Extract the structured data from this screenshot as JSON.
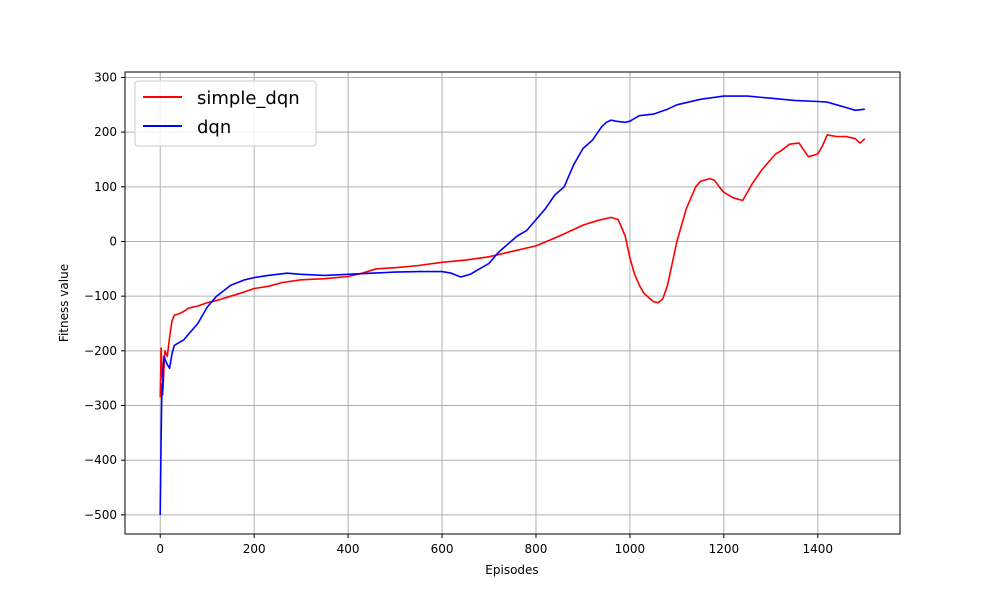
{
  "chart_data": {
    "type": "line",
    "xlabel": "Episodes",
    "ylabel": "Fitness value",
    "xlim": [
      -75,
      1575
    ],
    "ylim": [
      -535,
      310
    ],
    "x_ticks": [
      0,
      200,
      400,
      600,
      800,
      1000,
      1200,
      1400
    ],
    "y_ticks": [
      -500,
      -400,
      -300,
      -200,
      -100,
      0,
      100,
      200,
      300
    ],
    "grid": true,
    "legend_position": "top-left",
    "series": [
      {
        "name": "simple_dqn",
        "color": "#ff0000",
        "x": [
          0,
          2,
          4,
          6,
          8,
          10,
          15,
          20,
          25,
          30,
          40,
          50,
          60,
          80,
          100,
          120,
          150,
          180,
          200,
          230,
          260,
          300,
          350,
          400,
          430,
          460,
          500,
          550,
          600,
          650,
          700,
          750,
          800,
          850,
          900,
          930,
          960,
          975,
          990,
          1000,
          1010,
          1020,
          1030,
          1050,
          1060,
          1070,
          1080,
          1090,
          1100,
          1110,
          1120,
          1130,
          1140,
          1150,
          1170,
          1180,
          1190,
          1200,
          1220,
          1240,
          1260,
          1280,
          1300,
          1310,
          1320,
          1340,
          1360,
          1380,
          1400,
          1410,
          1420,
          1440,
          1460,
          1480,
          1490,
          1500
        ],
        "y": [
          -285,
          -195,
          -240,
          -270,
          -230,
          -200,
          -210,
          -175,
          -145,
          -135,
          -132,
          -128,
          -122,
          -118,
          -112,
          -108,
          -100,
          -92,
          -86,
          -82,
          -75,
          -70,
          -68,
          -64,
          -58,
          -50,
          -48,
          -44,
          -38,
          -34,
          -28,
          -18,
          -8,
          10,
          30,
          38,
          44,
          40,
          10,
          -30,
          -60,
          -80,
          -95,
          -110,
          -112,
          -105,
          -80,
          -40,
          0,
          30,
          60,
          80,
          100,
          110,
          115,
          112,
          100,
          90,
          80,
          75,
          105,
          130,
          150,
          160,
          165,
          178,
          180,
          155,
          160,
          175,
          195,
          192,
          192,
          188,
          180,
          188
        ]
      },
      {
        "name": "dqn",
        "color": "#0000ff",
        "x": [
          0,
          1,
          2,
          3,
          4,
          5,
          6,
          8,
          10,
          15,
          20,
          25,
          30,
          40,
          50,
          60,
          80,
          100,
          120,
          150,
          180,
          200,
          230,
          270,
          300,
          350,
          400,
          450,
          500,
          550,
          600,
          620,
          640,
          660,
          680,
          700,
          720,
          740,
          760,
          780,
          800,
          820,
          840,
          860,
          880,
          900,
          920,
          940,
          950,
          960,
          970,
          990,
          1000,
          1020,
          1050,
          1080,
          1100,
          1150,
          1200,
          1250,
          1300,
          1350,
          1400,
          1420,
          1440,
          1460,
          1480,
          1500
        ],
        "y": [
          -500,
          -420,
          -350,
          -300,
          -260,
          -280,
          -240,
          -210,
          -215,
          -225,
          -232,
          -205,
          -190,
          -185,
          -180,
          -170,
          -150,
          -120,
          -100,
          -80,
          -70,
          -66,
          -62,
          -58,
          -60,
          -62,
          -60,
          -58,
          -56,
          -55,
          -55,
          -58,
          -65,
          -60,
          -50,
          -40,
          -20,
          -5,
          10,
          20,
          40,
          60,
          85,
          100,
          140,
          170,
          185,
          210,
          218,
          222,
          220,
          218,
          220,
          230,
          233,
          242,
          250,
          260,
          266,
          266,
          262,
          258,
          256,
          255,
          250,
          245,
          240,
          242
        ]
      }
    ]
  }
}
